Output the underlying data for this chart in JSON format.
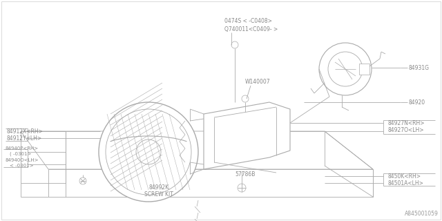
{
  "bg_color": "#ffffff",
  "lc": "#aaaaaa",
  "tc": "#888888",
  "border_lc": "#bbbbbb",
  "fig_width": 6.4,
  "fig_height": 3.2,
  "diagram_id": "A845001059",
  "lfs": 5.5,
  "label_data": {
    "top_line1": "0474S < -C0408>",
    "top_line2": "Q740011<C0409- >",
    "w140007": "W140007",
    "84931G": "84931G",
    "84920": "84920",
    "84927N": "84927N<RH>",
    "84927O": "84927O<LH>",
    "84912X": "84912X<RH>",
    "84912Y": "84912Y<LH>",
    "84940P": "84940P<RH>",
    "84940P_sub": "( -0301>",
    "84940O": "84940O<LH>",
    "84940O_sub": "< -0301>",
    "57786B": "57786B",
    "84992K": "84992K",
    "screw_kit": "SCREW KIT",
    "8450K": "8450K<RH>",
    "84501A": "84501A<LH>"
  }
}
